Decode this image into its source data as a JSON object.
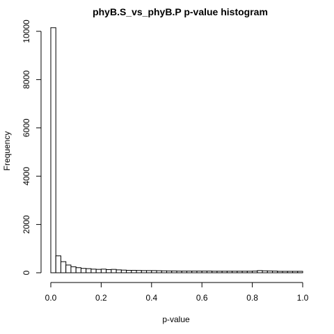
{
  "chart_data": {
    "type": "bar",
    "title": "phyB.S_vs_phyB.P p-value histogram",
    "xlabel": "p-value",
    "ylabel": "Frequency",
    "xlim": [
      0,
      1
    ],
    "ylim": [
      0,
      10200
    ],
    "bin_width": 0.02,
    "x_ticks": [
      "0.0",
      "0.2",
      "0.4",
      "0.6",
      "0.8",
      "1.0"
    ],
    "y_ticks": [
      "0",
      "2000",
      "4000",
      "6000",
      "8000",
      "10000"
    ],
    "values": [
      10150,
      700,
      460,
      320,
      250,
      210,
      180,
      170,
      150,
      140,
      150,
      130,
      140,
      120,
      110,
      100,
      100,
      95,
      90,
      90,
      90,
      85,
      80,
      75,
      75,
      70,
      70,
      70,
      70,
      70,
      70,
      70,
      65,
      65,
      65,
      65,
      65,
      65,
      65,
      65,
      70,
      90,
      80,
      75,
      70,
      60,
      60,
      60,
      60,
      60
    ]
  }
}
